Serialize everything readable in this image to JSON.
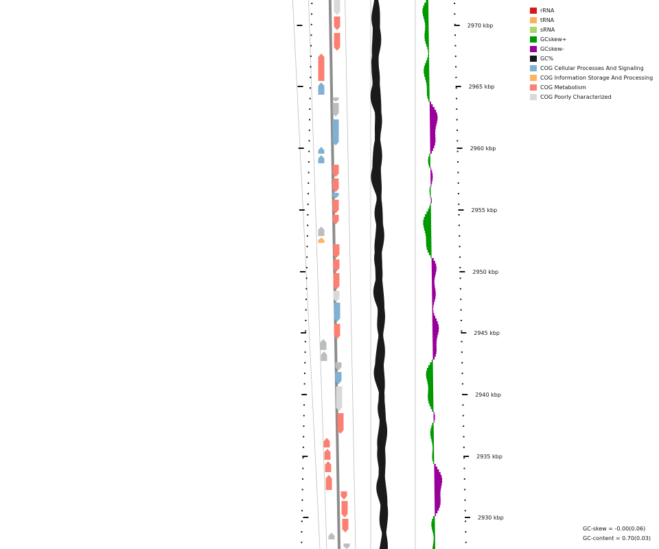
{
  "legend": {
    "items": [
      {
        "label": "rRNA",
        "color": "#d7191c"
      },
      {
        "label": "tRNA",
        "color": "#fdae61"
      },
      {
        "label": "sRNA",
        "color": "#a6d96a"
      },
      {
        "label": "GCskew+",
        "color": "#009900"
      },
      {
        "label": "GCskew-",
        "color": "#990099"
      },
      {
        "label": "GC%",
        "color": "#1a1a1a"
      },
      {
        "label": "COG Cellular Processes And Signaling",
        "color": "#80b1d3"
      },
      {
        "label": "COG Information Storage And Processing",
        "color": "#fdb462"
      },
      {
        "label": "COG Metabolism",
        "color": "#fb8072"
      },
      {
        "label": "COG Poorly Characterized",
        "color": "#d9d9d9"
      }
    ]
  },
  "ticks": [
    {
      "label": "2970 kbp"
    },
    {
      "label": "2965 kbp"
    },
    {
      "label": "2960 kbp"
    },
    {
      "label": "2955 kbp"
    },
    {
      "label": "2950 kbp"
    },
    {
      "label": "2945 kbp"
    },
    {
      "label": "2940 kbp"
    },
    {
      "label": "2935 kbp"
    },
    {
      "label": "2930 kbp"
    }
  ],
  "stats": {
    "gc_skew": "GC-skew = -0.00(0.06)",
    "gc_content": "GC-content = 0.70(0.03)"
  }
}
